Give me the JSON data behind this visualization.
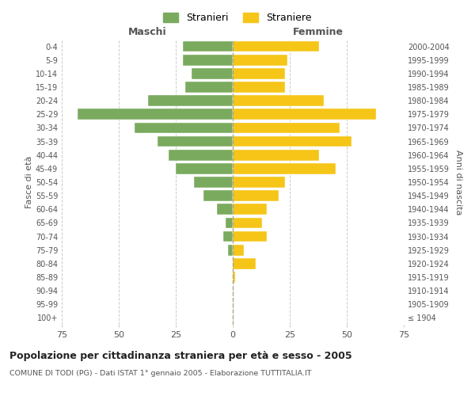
{
  "age_groups": [
    "100+",
    "95-99",
    "90-94",
    "85-89",
    "80-84",
    "75-79",
    "70-74",
    "65-69",
    "60-64",
    "55-59",
    "50-54",
    "45-49",
    "40-44",
    "35-39",
    "30-34",
    "25-29",
    "20-24",
    "15-19",
    "10-14",
    "5-9",
    "0-4"
  ],
  "birth_years": [
    "≤ 1904",
    "1905-1909",
    "1910-1914",
    "1915-1919",
    "1920-1924",
    "1925-1929",
    "1930-1934",
    "1935-1939",
    "1940-1944",
    "1945-1949",
    "1950-1954",
    "1955-1959",
    "1960-1964",
    "1965-1969",
    "1970-1974",
    "1975-1979",
    "1980-1984",
    "1985-1989",
    "1990-1994",
    "1995-1999",
    "2000-2004"
  ],
  "maschi": [
    0,
    0,
    0,
    0,
    0,
    2,
    4,
    3,
    7,
    13,
    17,
    25,
    28,
    33,
    43,
    68,
    37,
    21,
    18,
    22,
    22
  ],
  "femmine": [
    0,
    0,
    0,
    1,
    10,
    5,
    15,
    13,
    15,
    20,
    23,
    45,
    38,
    52,
    47,
    63,
    40,
    23,
    23,
    24,
    38
  ],
  "color_maschi": "#7aaa5e",
  "color_femmine": "#f5c518",
  "xlim": 75,
  "title": "Popolazione per cittadinanza straniera per età e sesso - 2005",
  "subtitle": "COMUNE DI TODI (PG) - Dati ISTAT 1° gennaio 2005 - Elaborazione TUTTITALIA.IT",
  "ylabel_left": "Fasce di età",
  "ylabel_right": "Anni di nascita",
  "label_maschi": "Stranieri",
  "label_femmine": "Straniere",
  "header_left": "Maschi",
  "header_right": "Femmine",
  "bg_color": "#ffffff",
  "grid_color": "#cccccc",
  "bar_height": 0.8
}
